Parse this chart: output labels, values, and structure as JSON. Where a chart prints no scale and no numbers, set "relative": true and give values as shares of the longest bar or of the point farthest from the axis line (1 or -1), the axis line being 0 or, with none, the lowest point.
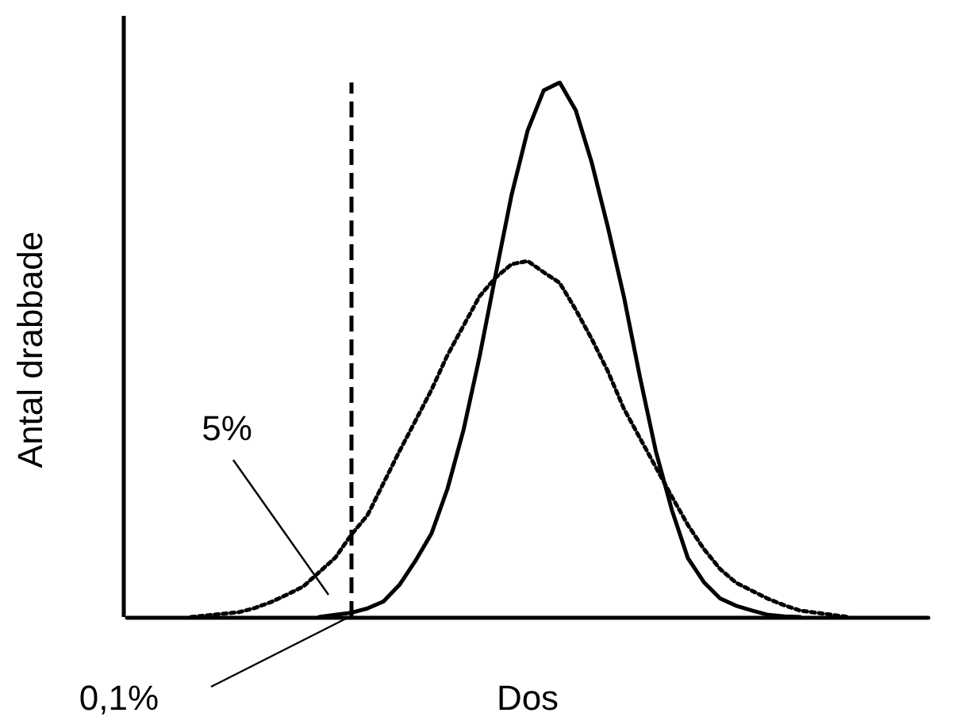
{
  "chart_data": {
    "type": "line",
    "xlabel": "Dos",
    "ylabel": "Antal drabbade",
    "relative": true,
    "tick_labels": false,
    "marker": "none",
    "categories": [
      null,
      null,
      null,
      null,
      null,
      null,
      null,
      null,
      null,
      null,
      null,
      null,
      null,
      null,
      null,
      null,
      null,
      null,
      null,
      null,
      null,
      null,
      null,
      null,
      null,
      null,
      null,
      null,
      null,
      null,
      null,
      null,
      null,
      null,
      null,
      null,
      null,
      null,
      null,
      null,
      null,
      null,
      null,
      null,
      null,
      null,
      null,
      null,
      null,
      null,
      null
    ],
    "series": [
      {
        "color": "#000000",
        "line_style": "solid",
        "values": [
          null,
          null,
          null,
          null,
          null,
          null,
          null,
          null,
          null,
          null,
          null,
          null,
          0,
          0.004,
          0.008,
          0.016,
          0.029,
          0.06,
          0.105,
          0.156,
          0.24,
          0.35,
          0.487,
          0.64,
          0.79,
          0.91,
          0.985,
          1,
          0.948,
          0.85,
          0.73,
          0.6,
          0.45,
          0.31,
          0.2,
          0.11,
          0.065,
          0.035,
          0.021,
          0.012,
          0.004,
          0.001,
          0,
          null,
          null,
          null,
          null,
          null,
          null,
          null,
          null
        ]
      },
      {
        "color": "#000000",
        "line_style": "dotted",
        "values": [
          null,
          null,
          null,
          null,
          0,
          0.003,
          0.006,
          0.009,
          0.017,
          0.028,
          0.042,
          0.057,
          0.084,
          0.111,
          0.154,
          0.19,
          0.25,
          0.31,
          0.367,
          0.425,
          0.49,
          0.545,
          0.6,
          0.635,
          0.66,
          0.666,
          0.645,
          0.625,
          0.575,
          0.52,
          0.46,
          0.39,
          0.335,
          0.28,
          0.225,
          0.172,
          0.127,
          0.09,
          0.064,
          0.049,
          0.034,
          0.022,
          0.012,
          0.008,
          0.004,
          0,
          null,
          null,
          null,
          null,
          null
        ]
      }
    ],
    "annotations": [
      "5%",
      "0,1%"
    ]
  }
}
